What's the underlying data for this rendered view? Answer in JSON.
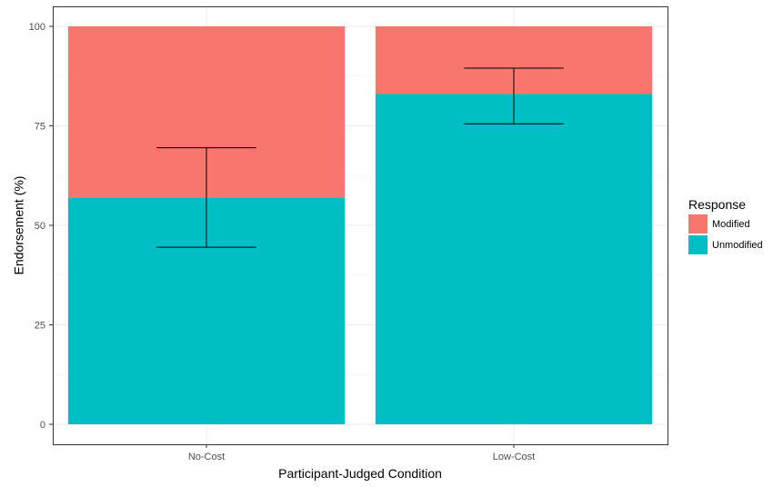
{
  "chart_data": {
    "type": "bar",
    "stacked": true,
    "categories": [
      "No-Cost",
      "Low-Cost"
    ],
    "series": [
      {
        "name": "Unmodified",
        "color": "#00BFC4",
        "values": [
          57,
          83
        ]
      },
      {
        "name": "Modified",
        "color": "#F8766D",
        "values": [
          43,
          17
        ]
      }
    ],
    "error_bars": [
      {
        "category": "No-Cost",
        "low": 44.5,
        "high": 69.5
      },
      {
        "category": "Low-Cost",
        "low": 75.5,
        "high": 89.5
      }
    ],
    "xlabel": "Participant-Judged Condition",
    "ylabel": "Endorsement (%)",
    "ylim": [
      0,
      100
    ],
    "yticks": [
      "0",
      "25",
      "50",
      "75",
      "100"
    ],
    "grid": true,
    "legend": {
      "title": "Response",
      "position": "right",
      "entries": [
        "Modified",
        "Unmodified"
      ]
    }
  }
}
